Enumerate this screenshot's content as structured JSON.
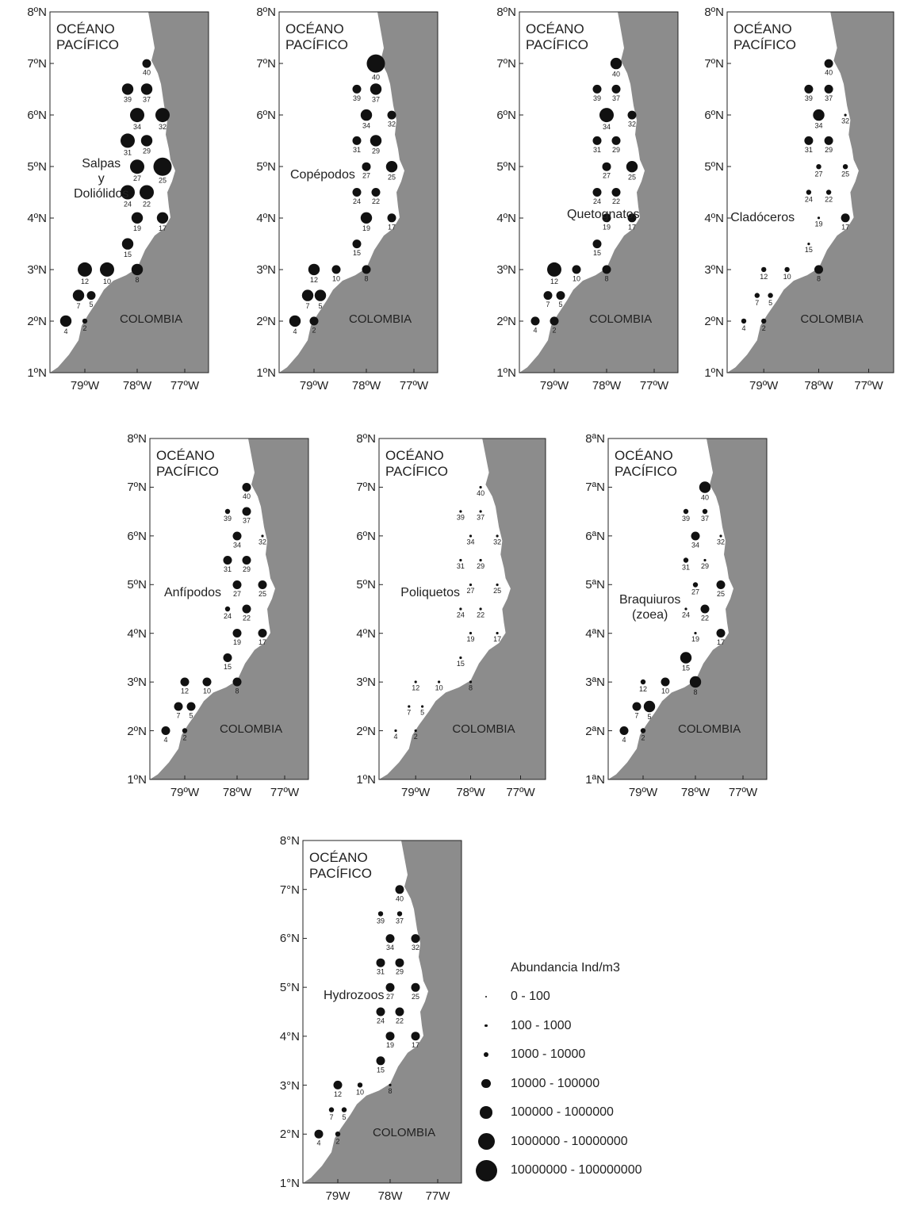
{
  "common": {
    "ocean_line1": "OCÉANO",
    "ocean_line2": "PACÍFICO",
    "country": "COLOMBIA",
    "colors": {
      "land": "#8c8c8c",
      "marker": "#111111",
      "frame": "#222222"
    }
  },
  "station_names": [
    "40",
    "39",
    "37",
    "34",
    "32",
    "31",
    "29",
    "27",
    "25",
    "24",
    "22",
    "19",
    "17",
    "15",
    "12",
    "10",
    "8",
    "7",
    "5",
    "4",
    "2"
  ],
  "panels": [
    {
      "id": "salpas",
      "taxon": [
        "Salpas",
        "y",
        "Doliólidos"
      ],
      "y_ticks": [
        "8ºN",
        "7ºN",
        "6ºN",
        "5ºN",
        "4ºN",
        "3ºN",
        "2ºN",
        "1ºN"
      ],
      "x_ticks": [
        "79ºW",
        "78ºW",
        "77ºW"
      ],
      "abundance_class": [
        3,
        4,
        4,
        5,
        5,
        5,
        4,
        5,
        6,
        5,
        5,
        4,
        4,
        4,
        5,
        5,
        4,
        4,
        3,
        4,
        2
      ]
    },
    {
      "id": "copepodos",
      "taxon": [
        "Copépodos"
      ],
      "y_ticks": [
        "8ºN",
        "7ºN",
        "6ºN",
        "5ºN",
        "4ºN",
        "3ºN",
        "2ºN",
        "1ºN"
      ],
      "x_ticks": [
        "79ºW",
        "78ºW",
        "77ºW"
      ],
      "abundance_class": [
        6,
        3,
        4,
        4,
        3,
        3,
        4,
        3,
        4,
        3,
        3,
        4,
        3,
        3,
        4,
        3,
        3,
        4,
        4,
        4,
        3
      ]
    },
    {
      "id": "quetognatos",
      "taxon": [
        "Quetognatos"
      ],
      "y_ticks": [
        "8ºN",
        "7ºN",
        "6ºN",
        "5ºN",
        "4ºN",
        "3ºN",
        "2ºN",
        "1ºN"
      ],
      "x_ticks": [
        "79ºW",
        "78ºW",
        "77ºW"
      ],
      "abundance_class": [
        4,
        3,
        3,
        5,
        3,
        3,
        3,
        3,
        4,
        3,
        3,
        3,
        3,
        3,
        5,
        3,
        3,
        3,
        3,
        3,
        3
      ]
    },
    {
      "id": "cladoceros",
      "taxon": [
        "Cladóceros"
      ],
      "y_ticks": [
        "8ºN",
        "7ºN",
        "6ºN",
        "5ºN",
        "4ºN",
        "3ºN",
        "2ºN",
        "1ºN"
      ],
      "x_ticks": [
        "79ºW",
        "78ºW",
        "77ºW"
      ],
      "abundance_class": [
        3,
        3,
        3,
        4,
        1,
        3,
        3,
        2,
        2,
        2,
        2,
        1,
        3,
        1,
        2,
        2,
        3,
        2,
        2,
        2,
        2
      ]
    },
    {
      "id": "anfipodos",
      "taxon": [
        "Anfípodos"
      ],
      "y_ticks": [
        "8ºN",
        "7ºN",
        "6ºN",
        "5ºN",
        "4ºN",
        "3ºN",
        "2ºN",
        "1ºN"
      ],
      "x_ticks": [
        "79ºW",
        "78ºW",
        "77ºW"
      ],
      "abundance_class": [
        3,
        2,
        3,
        3,
        1,
        3,
        3,
        3,
        3,
        2,
        3,
        3,
        3,
        3,
        3,
        3,
        3,
        3,
        3,
        3,
        2
      ]
    },
    {
      "id": "poliquetos",
      "taxon": [
        "Poliquetos"
      ],
      "y_ticks": [
        "8ºN",
        "7ºN",
        "6ºN",
        "5ºN",
        "4ºN",
        "3ºN",
        "2ºN",
        "1ºN"
      ],
      "x_ticks": [
        "79ºW",
        "78ºW",
        "77ºW"
      ],
      "abundance_class": [
        1,
        1,
        1,
        1,
        1,
        1,
        1,
        1,
        1,
        1,
        1,
        1,
        1,
        1,
        1,
        1,
        1,
        1,
        1,
        1,
        1
      ]
    },
    {
      "id": "braquiuros",
      "taxon": [
        "Braquiuros",
        "(zoea)"
      ],
      "y_ticks": [
        "8ªN",
        "7ªN",
        "6ªN",
        "5ªN",
        "4ªN",
        "3ªN",
        "2ªN",
        "1ªN"
      ],
      "x_ticks": [
        "79ºW",
        "78ºW",
        "77ºW"
      ],
      "abundance_class": [
        4,
        2,
        2,
        3,
        1,
        2,
        1,
        2,
        3,
        1,
        3,
        1,
        3,
        4,
        2,
        3,
        4,
        3,
        4,
        3,
        2
      ]
    },
    {
      "id": "hydrozoos",
      "taxon": [
        "Hydrozoos"
      ],
      "y_ticks": [
        "8°N",
        "7°N",
        "6°N",
        "5°N",
        "4°N",
        "3°N",
        "2°N",
        "1°N"
      ],
      "x_ticks": [
        "79W",
        "78W",
        "77W"
      ],
      "abundance_class": [
        3,
        2,
        2,
        3,
        3,
        3,
        3,
        3,
        3,
        3,
        3,
        3,
        3,
        3,
        3,
        2,
        1,
        2,
        2,
        3,
        2
      ]
    }
  ],
  "legend": {
    "title": "Abundancia Ind/m3",
    "classes": [
      "0  -  100",
      "100  -  1000",
      "1000  -  10000",
      "10000  -  100000",
      "100000  -  1000000",
      "1000000  -  10000000",
      "10000000  -  100000000"
    ]
  }
}
